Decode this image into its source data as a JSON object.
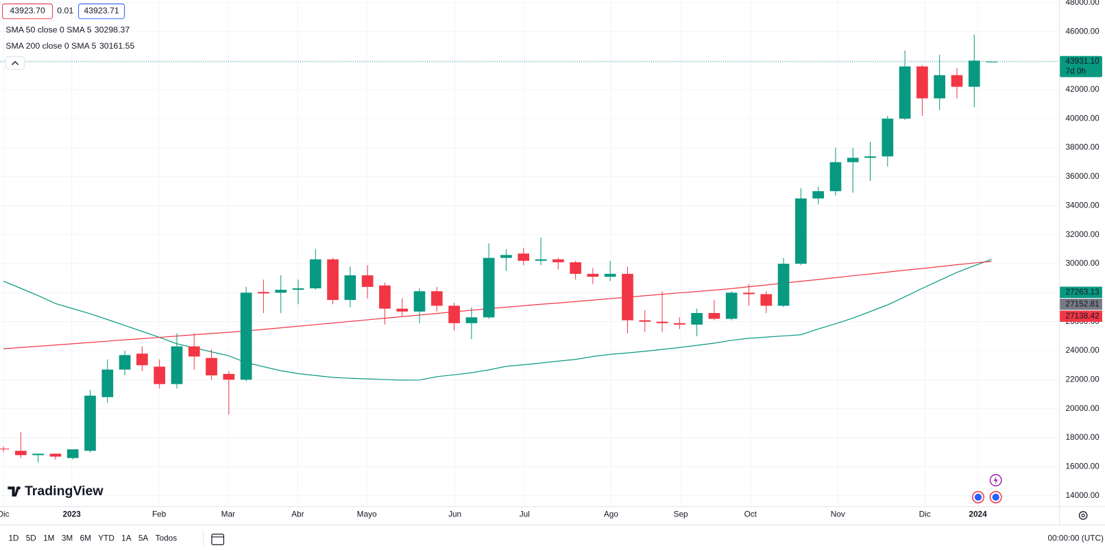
{
  "chart_data": {
    "type": "candlestick",
    "up_color": "#089981",
    "down_color": "#f23645",
    "open": [
      17250,
      17100,
      16800,
      16900,
      16600,
      17100,
      20800,
      22700,
      23800,
      22900,
      21700,
      24300,
      23500,
      22400,
      22000,
      28050,
      28000,
      28200,
      28300,
      30300,
      27500,
      29200,
      28500,
      26900,
      26700,
      28100,
      27100,
      25900,
      26300,
      30400,
      30700,
      30200,
      30300,
      30100,
      29300,
      29100,
      29300,
      26100,
      26000,
      25900,
      25800,
      26600,
      26200,
      28000,
      27900,
      27100,
      30000,
      34500,
      35000,
      37000,
      37300,
      37400,
      40000,
      43600,
      41400,
      43000,
      42200,
      43900
    ],
    "high": [
      17400,
      18400,
      16900,
      16900,
      17200,
      21300,
      23400,
      24000,
      24300,
      23400,
      25200,
      25200,
      24100,
      22600,
      28400,
      28900,
      29200,
      28900,
      31000,
      30400,
      29800,
      29900,
      28700,
      27600,
      28300,
      28400,
      27300,
      27000,
      31400,
      31000,
      31100,
      31800,
      30400,
      30200,
      29700,
      30200,
      29800,
      26800,
      28100,
      26300,
      26900,
      27500,
      28100,
      28600,
      28100,
      30400,
      35200,
      35300,
      38000,
      38000,
      38400,
      40200,
      44700,
      43700,
      44400,
      43500,
      45800,
      43960
    ],
    "low": [
      17000,
      16600,
      16300,
      16500,
      16500,
      17000,
      20400,
      22300,
      22600,
      21400,
      21400,
      22700,
      22000,
      19600,
      21900,
      26600,
      26600,
      27200,
      28200,
      27200,
      27000,
      27600,
      25800,
      26400,
      25900,
      26700,
      25400,
      24800,
      26200,
      29500,
      29900,
      29900,
      29600,
      28900,
      28600,
      28800,
      25200,
      25300,
      25300,
      25500,
      25000,
      26100,
      26100,
      27100,
      26600,
      27000,
      29900,
      34100,
      34700,
      34900,
      35700,
      36700,
      39900,
      40200,
      40600,
      41400,
      40800,
      43890
    ],
    "close": [
      17200,
      16800,
      16900,
      16700,
      17200,
      20900,
      22700,
      23700,
      23000,
      21700,
      24300,
      23600,
      22300,
      22000,
      28000,
      27950,
      28200,
      28300,
      30300,
      27500,
      29200,
      28400,
      26900,
      26700,
      28100,
      27100,
      25900,
      26300,
      30400,
      30600,
      30200,
      30300,
      30100,
      29300,
      29100,
      29300,
      26100,
      26000,
      25900,
      25800,
      26600,
      26200,
      28000,
      27900,
      27100,
      30000,
      34500,
      35000,
      37000,
      37300,
      37400,
      40000,
      43600,
      41400,
      43000,
      42200,
      44000,
      43931.1
    ],
    "series": [
      {
        "name": "SMA 50 close 0 SMA 5",
        "color": "#089981",
        "values": [
          28800,
          28300,
          27800,
          27250,
          26900,
          26550,
          26150,
          25740,
          25330,
          24920,
          24480,
          24200,
          23920,
          23650,
          23180,
          22900,
          22620,
          22420,
          22290,
          22160,
          22100,
          22060,
          22010,
          21970,
          21980,
          22210,
          22340,
          22480,
          22680,
          22920,
          23030,
          23150,
          23280,
          23400,
          23600,
          23750,
          23850,
          23960,
          24090,
          24220,
          24370,
          24520,
          24720,
          24860,
          24940,
          25020,
          25100,
          25500,
          25860,
          26250,
          26700,
          27160,
          27720,
          28300,
          28850,
          29400,
          29860,
          30298.37
        ]
      },
      {
        "name": "SMA 200 close 0 SMA 5",
        "color": "#f23645",
        "values": [
          24130,
          24220,
          24310,
          24390,
          24480,
          24570,
          24660,
          24750,
          24830,
          24920,
          25010,
          25100,
          25190,
          25270,
          25360,
          25470,
          25580,
          25690,
          25800,
          25910,
          26020,
          26130,
          26240,
          26350,
          26460,
          26570,
          26680,
          26790,
          26900,
          27000,
          27100,
          27200,
          27290,
          27390,
          27490,
          27590,
          27690,
          27790,
          27890,
          27990,
          28080,
          28180,
          28280,
          28410,
          28530,
          28660,
          28790,
          28910,
          29040,
          29170,
          29290,
          29420,
          29550,
          29670,
          29800,
          29930,
          30050,
          30161.55
        ]
      }
    ],
    "xlim": [
      -0.2,
      60.9
    ],
    "xticks": [
      {
        "value": 0,
        "label": "Dic"
      },
      {
        "value": 3.94,
        "label": "2023"
      },
      {
        "value": 8.98,
        "label": "Feb"
      },
      {
        "value": 12.96,
        "label": "Mar"
      },
      {
        "value": 16.98,
        "label": "Abr"
      },
      {
        "value": 20.96,
        "label": "Mayo"
      },
      {
        "value": 26.04,
        "label": "Jun"
      },
      {
        "value": 30.06,
        "label": "Jul"
      },
      {
        "value": 35.05,
        "label": "Ago"
      },
      {
        "value": 39.07,
        "label": "Sep"
      },
      {
        "value": 43.09,
        "label": "Oct"
      },
      {
        "value": 48.13,
        "label": "Nov"
      },
      {
        "value": 53.15,
        "label": "Dic"
      },
      {
        "value": 56.21,
        "label": "2024"
      }
    ],
    "ylim": [
      13320,
      48180
    ],
    "yticks": [
      {
        "value": 14000,
        "label": "14000.00"
      },
      {
        "value": 16000,
        "label": "16000.00"
      },
      {
        "value": 18000,
        "label": "18000.00"
      },
      {
        "value": 20000,
        "label": "20000.00"
      },
      {
        "value": 22000,
        "label": "22000.00"
      },
      {
        "value": 24000,
        "label": "24000.00"
      },
      {
        "value": 26000,
        "label": "26000.00"
      },
      {
        "value": 28000,
        "label": "28000.00"
      },
      {
        "value": 30000,
        "label": "30000.00"
      },
      {
        "value": 32000,
        "label": "32000.00"
      },
      {
        "value": 34000,
        "label": "34000.00"
      },
      {
        "value": 36000,
        "label": "36000.00"
      },
      {
        "value": 38000,
        "label": "38000.00"
      },
      {
        "value": 40000,
        "label": "40000.00"
      },
      {
        "value": 42000,
        "label": "42000.00"
      },
      {
        "value": 44000,
        "label": "44000.00"
      },
      {
        "value": 46000,
        "label": "46000.00"
      },
      {
        "value": 48000,
        "label": "48000.00"
      }
    ],
    "grid": true,
    "last_price": {
      "value": 43931.1,
      "label": "43931.10",
      "color": "#089981"
    },
    "countdown": "7d 0h",
    "price_labels": [
      {
        "value": 27263.13,
        "label": "27263.13",
        "color": "#089981"
      },
      {
        "value": 27152.81,
        "label": "27152.81",
        "color": "#787b86"
      },
      {
        "value": 27138.42,
        "label": "27138.42",
        "color": "#f23645"
      }
    ],
    "bid": {
      "value": 43923.7,
      "label": "43923.70",
      "color": "#f23645"
    },
    "spread": 0.01,
    "ask": {
      "value": 43923.71,
      "color": "#2962ff"
    },
    "brand": "TradingView",
    "timeframes": [
      "1D",
      "5D",
      "1M",
      "3M",
      "6M",
      "YTD",
      "1A",
      "5A",
      "Todos"
    ],
    "clock": "00:00:00 (UTC)"
  }
}
